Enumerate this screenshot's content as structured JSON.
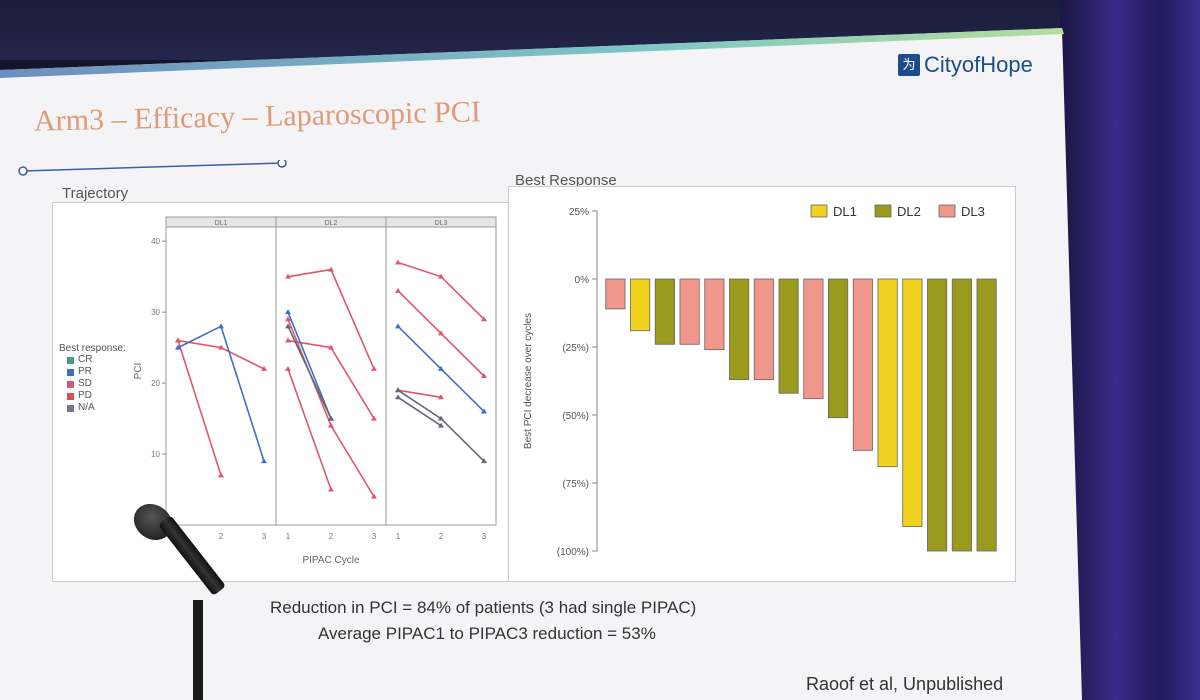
{
  "slide": {
    "title": "Arm3 – Efficacy – Laparoscopic PCI",
    "logo_text": "CityofHope",
    "logo_icon": "city-of-hope-mark",
    "caption_1": "Reduction in PCI = 84% of patients (3 had single PIPAC)",
    "caption_2": "Average PIPAC1 to PIPAC3 reduction = 53%",
    "citation": "Raoof et al, Unpublished"
  },
  "colors": {
    "accent": "#e09a78",
    "logo": "#1f4b8a",
    "DL1": "#f1d21f",
    "DL2": "#9a9a1f",
    "DL3": "#f1968a",
    "SD": "#e0566e",
    "PR": "#3f6fc4",
    "NA": "#666677"
  },
  "chart_data": [
    {
      "type": "line",
      "panel_label": "Trajectory",
      "xlabel": "PIPAC Cycle",
      "ylabel": "PCI",
      "ylim": [
        0,
        42
      ],
      "yticks": [
        10,
        20,
        30,
        40
      ],
      "xticks": [
        1,
        2,
        3
      ],
      "facets": [
        "DL1",
        "DL2",
        "DL3"
      ],
      "legend": {
        "title": "Best response:",
        "entries": [
          "CR",
          "PR",
          "SD",
          "PD",
          "N/A"
        ],
        "colors": [
          "#4a9a8a",
          "#3f6fc4",
          "#d05a78",
          "#d85050",
          "#777788"
        ]
      },
      "series": [
        {
          "facet": "DL1",
          "response": "SD",
          "x": [
            1,
            2
          ],
          "y": [
            26,
            7
          ]
        },
        {
          "facet": "DL1",
          "response": "SD",
          "x": [
            1,
            2,
            3
          ],
          "y": [
            26,
            25,
            22
          ]
        },
        {
          "facet": "DL1",
          "response": "PR",
          "x": [
            1,
            2,
            3
          ],
          "y": [
            25,
            28,
            9
          ]
        },
        {
          "facet": "DL2",
          "response": "SD",
          "x": [
            1,
            2,
            3
          ],
          "y": [
            35,
            36,
            22
          ]
        },
        {
          "facet": "DL2",
          "response": "SD",
          "x": [
            1,
            2,
            3
          ],
          "y": [
            26,
            25,
            15
          ]
        },
        {
          "facet": "DL2",
          "response": "SD",
          "x": [
            1,
            2,
            3
          ],
          "y": [
            29,
            14,
            4
          ]
        },
        {
          "facet": "DL2",
          "response": "SD",
          "x": [
            1,
            2
          ],
          "y": [
            22,
            5
          ]
        },
        {
          "facet": "DL2",
          "response": "PR",
          "x": [
            1,
            2
          ],
          "y": [
            30,
            15
          ]
        },
        {
          "facet": "DL2",
          "response": "N/A",
          "x": [
            1,
            2
          ],
          "y": [
            28,
            15
          ]
        },
        {
          "facet": "DL3",
          "response": "SD",
          "x": [
            1,
            2,
            3
          ],
          "y": [
            37,
            35,
            29
          ]
        },
        {
          "facet": "DL3",
          "response": "SD",
          "x": [
            1,
            2,
            3
          ],
          "y": [
            33,
            27,
            21
          ]
        },
        {
          "facet": "DL3",
          "response": "PR",
          "x": [
            1,
            2,
            3
          ],
          "y": [
            28,
            22,
            16
          ]
        },
        {
          "facet": "DL3",
          "response": "SD",
          "x": [
            1,
            2
          ],
          "y": [
            19,
            18
          ]
        },
        {
          "facet": "DL3",
          "response": "N/A",
          "x": [
            1,
            2,
            3
          ],
          "y": [
            19,
            15,
            9
          ]
        },
        {
          "facet": "DL3",
          "response": "N/A",
          "x": [
            1,
            2
          ],
          "y": [
            18,
            14
          ]
        }
      ]
    },
    {
      "type": "bar",
      "panel_label": "Best Response",
      "ylabel": "Best PCI decrease over cycles",
      "ylim": [
        -100,
        25
      ],
      "yticks": [
        25,
        0,
        -25,
        -50,
        -75,
        -100
      ],
      "ytick_labels": [
        "25%",
        "0%",
        "(25%)",
        "(50%)",
        "(75%)",
        "(100%)"
      ],
      "legend": [
        "DL1",
        "DL2",
        "DL3"
      ],
      "legend_position": "top-right",
      "bars": [
        {
          "group": "DL3",
          "value": -11
        },
        {
          "group": "DL1",
          "value": -19
        },
        {
          "group": "DL2",
          "value": -24
        },
        {
          "group": "DL3",
          "value": -24
        },
        {
          "group": "DL3",
          "value": -26
        },
        {
          "group": "DL2",
          "value": -37
        },
        {
          "group": "DL3",
          "value": -37
        },
        {
          "group": "DL2",
          "value": -42
        },
        {
          "group": "DL3",
          "value": -44
        },
        {
          "group": "DL2",
          "value": -51
        },
        {
          "group": "DL3",
          "value": -63
        },
        {
          "group": "DL1",
          "value": -69
        },
        {
          "group": "DL1",
          "value": -91
        },
        {
          "group": "DL2",
          "value": -100
        },
        {
          "group": "DL2",
          "value": -100
        },
        {
          "group": "DL2",
          "value": -100
        }
      ]
    }
  ]
}
